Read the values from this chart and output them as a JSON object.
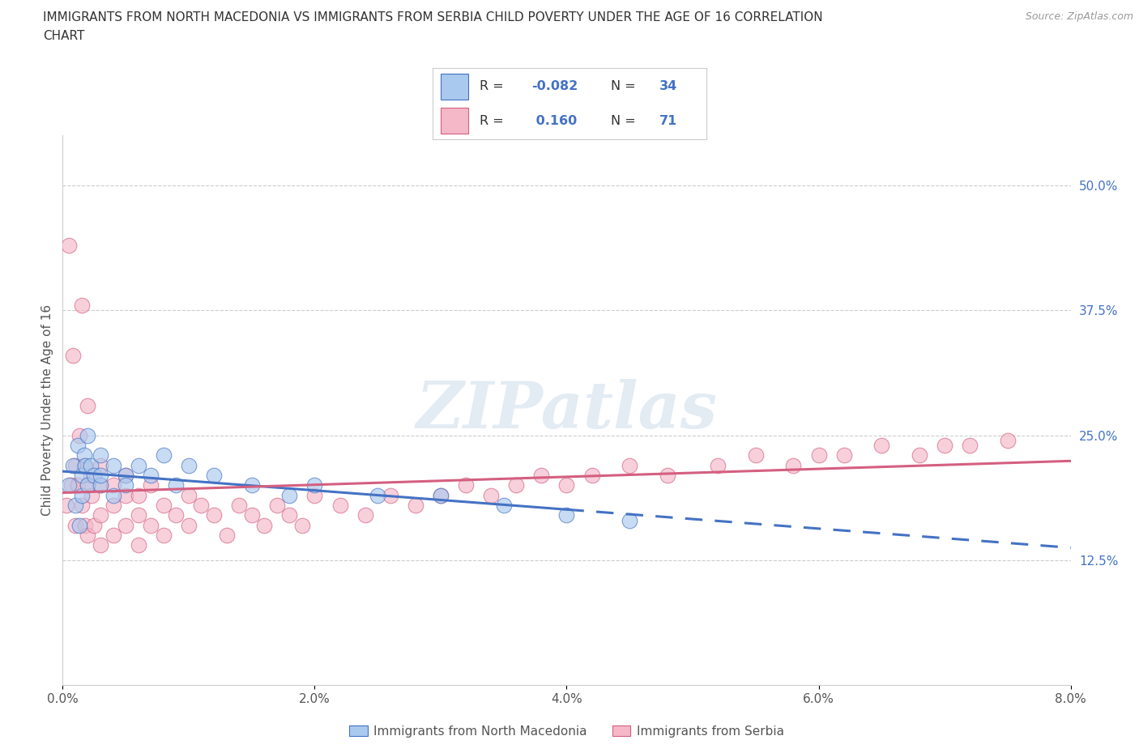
{
  "title_line1": "IMMIGRANTS FROM NORTH MACEDONIA VS IMMIGRANTS FROM SERBIA CHILD POVERTY UNDER THE AGE OF 16 CORRELATION",
  "title_line2": "CHART",
  "source": "Source: ZipAtlas.com",
  "xlabel_north_macedonia": "Immigrants from North Macedonia",
  "xlabel_serbia": "Immigrants from Serbia",
  "ylabel": "Child Poverty Under the Age of 16",
  "xlim": [
    0.0,
    0.08
  ],
  "ylim": [
    0.0,
    0.55
  ],
  "xticks": [
    0.0,
    0.02,
    0.04,
    0.06,
    0.08
  ],
  "xtick_labels": [
    "0.0%",
    "2.0%",
    "4.0%",
    "6.0%",
    "8.0%"
  ],
  "ytick_labels_right": [
    "12.5%",
    "25.0%",
    "37.5%",
    "50.0%"
  ],
  "ytick_vals_right": [
    0.125,
    0.25,
    0.375,
    0.5
  ],
  "r_north_macedonia": -0.082,
  "n_north_macedonia": 34,
  "r_serbia": 0.16,
  "n_serbia": 71,
  "color_north_macedonia": "#aac9ee",
  "color_serbia": "#f4b8c8",
  "line_color_north_macedonia": "#4472c4",
  "line_color_serbia": "#d45f80",
  "background_color": "#ffffff",
  "watermark": "ZIPatlas",
  "nm_x": [
    0.0005,
    0.0008,
    0.001,
    0.0012,
    0.0013,
    0.0015,
    0.0015,
    0.0017,
    0.0018,
    0.002,
    0.002,
    0.0022,
    0.0025,
    0.003,
    0.003,
    0.003,
    0.004,
    0.004,
    0.005,
    0.005,
    0.006,
    0.007,
    0.008,
    0.009,
    0.01,
    0.012,
    0.015,
    0.018,
    0.02,
    0.025,
    0.03,
    0.035,
    0.04,
    0.045
  ],
  "nm_y": [
    0.2,
    0.22,
    0.18,
    0.24,
    0.16,
    0.21,
    0.19,
    0.23,
    0.22,
    0.25,
    0.2,
    0.22,
    0.21,
    0.23,
    0.2,
    0.21,
    0.22,
    0.19,
    0.21,
    0.2,
    0.22,
    0.21,
    0.23,
    0.2,
    0.22,
    0.21,
    0.2,
    0.19,
    0.2,
    0.19,
    0.19,
    0.18,
    0.17,
    0.165
  ],
  "sr_x": [
    0.0003,
    0.0005,
    0.0007,
    0.0008,
    0.001,
    0.001,
    0.0012,
    0.0013,
    0.0015,
    0.0015,
    0.0017,
    0.0018,
    0.002,
    0.002,
    0.002,
    0.0022,
    0.0023,
    0.0025,
    0.003,
    0.003,
    0.003,
    0.003,
    0.004,
    0.004,
    0.004,
    0.005,
    0.005,
    0.005,
    0.006,
    0.006,
    0.006,
    0.007,
    0.007,
    0.008,
    0.008,
    0.009,
    0.01,
    0.01,
    0.011,
    0.012,
    0.013,
    0.014,
    0.015,
    0.016,
    0.017,
    0.018,
    0.019,
    0.02,
    0.022,
    0.024,
    0.026,
    0.028,
    0.03,
    0.032,
    0.034,
    0.036,
    0.038,
    0.04,
    0.042,
    0.045,
    0.048,
    0.052,
    0.055,
    0.058,
    0.06,
    0.062,
    0.065,
    0.068,
    0.07,
    0.072,
    0.075
  ],
  "sr_y": [
    0.18,
    0.44,
    0.2,
    0.33,
    0.22,
    0.16,
    0.2,
    0.25,
    0.18,
    0.38,
    0.22,
    0.16,
    0.2,
    0.28,
    0.15,
    0.21,
    0.19,
    0.16,
    0.2,
    0.17,
    0.22,
    0.14,
    0.18,
    0.2,
    0.15,
    0.19,
    0.16,
    0.21,
    0.17,
    0.19,
    0.14,
    0.2,
    0.16,
    0.18,
    0.15,
    0.17,
    0.19,
    0.16,
    0.18,
    0.17,
    0.15,
    0.18,
    0.17,
    0.16,
    0.18,
    0.17,
    0.16,
    0.19,
    0.18,
    0.17,
    0.19,
    0.18,
    0.19,
    0.2,
    0.19,
    0.2,
    0.21,
    0.2,
    0.21,
    0.22,
    0.21,
    0.22,
    0.23,
    0.22,
    0.23,
    0.23,
    0.24,
    0.23,
    0.24,
    0.24,
    0.245
  ]
}
